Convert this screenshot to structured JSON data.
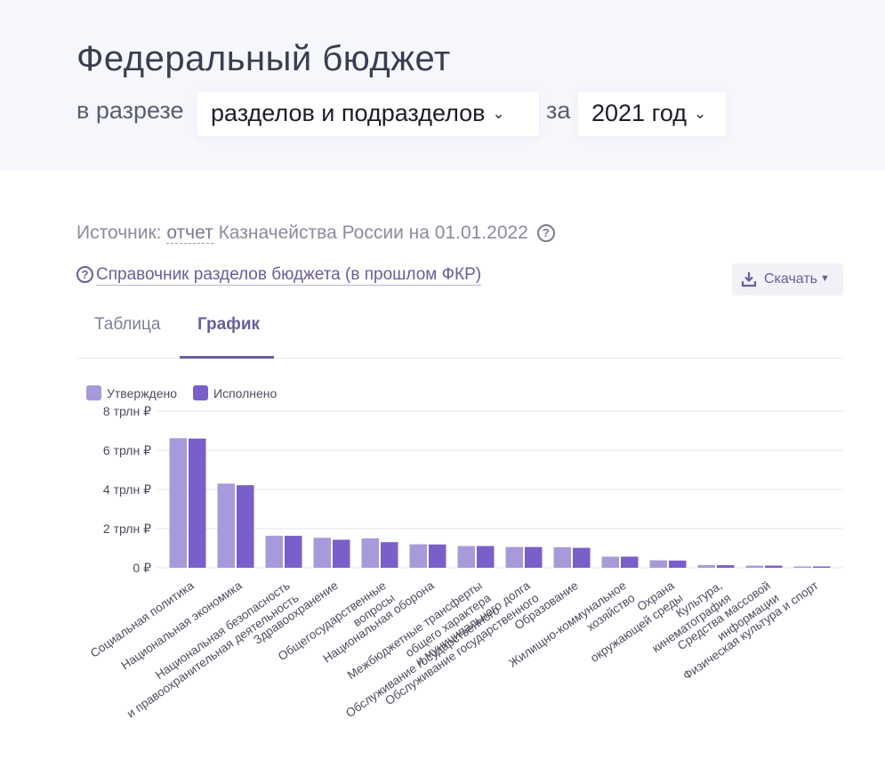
{
  "header": {
    "title": "Федеральный бюджет",
    "prefix": "в разрезе",
    "breakdown_value": "разделов и подразделов",
    "mid": "за",
    "year_value": "2021 год"
  },
  "source": {
    "prefix": "Источник:",
    "link": "отчет",
    "suffix": "Казначейства России на 01.01.2022"
  },
  "reference_link": "Справочник разделов бюджета (в прошлом ФКР)",
  "download_label": "Скачать",
  "tabs": [
    {
      "label": "Таблица",
      "active": false
    },
    {
      "label": "График",
      "active": true
    }
  ],
  "colors": {
    "approved": "#a89ada",
    "executed": "#7a5fca",
    "accent": "#6a5d9c"
  },
  "chart_data": {
    "type": "bar",
    "title": "",
    "xlabel": "",
    "ylabel": "",
    "ylim": [
      0,
      8
    ],
    "yticks": [
      "0 ₽",
      "2 трлн ₽",
      "4 трлн ₽",
      "6 трлн ₽",
      "8 трлн ₽"
    ],
    "grid": true,
    "legend": "top-left",
    "categories": [
      [
        "Социальная политика"
      ],
      [
        "Национальная экономика"
      ],
      [
        "Национальная безопасность",
        "и правоохранительная деятельность"
      ],
      [
        "Здравоохранение"
      ],
      [
        "Общегосударственные",
        "вопросы"
      ],
      [
        "Национальная оборона"
      ],
      [
        "Межбюджетные трансферты",
        "общего характера",
        "Обслуживание государственного"
      ],
      [
        "и муниципального долга",
        "Обслуживание государственного"
      ],
      [
        "Образование"
      ],
      [
        "Жилищно-коммунальное",
        "хозяйство"
      ],
      [
        "Охрана",
        "окружающей среды"
      ],
      [
        "Культура,",
        "кинематография"
      ],
      [
        "Средства массовой",
        "информации"
      ],
      [
        "Физическая культура и спорт"
      ]
    ],
    "series": [
      {
        "name": "Утверждено",
        "values": [
          6.62,
          4.3,
          1.63,
          1.53,
          1.5,
          1.2,
          1.11,
          1.06,
          1.05,
          0.57,
          0.38,
          0.14,
          0.11,
          0.07
        ]
      },
      {
        "name": "Исполнено",
        "values": [
          6.6,
          4.22,
          1.63,
          1.43,
          1.31,
          1.19,
          1.11,
          1.06,
          1.02,
          0.57,
          0.37,
          0.13,
          0.11,
          0.07
        ]
      }
    ]
  }
}
